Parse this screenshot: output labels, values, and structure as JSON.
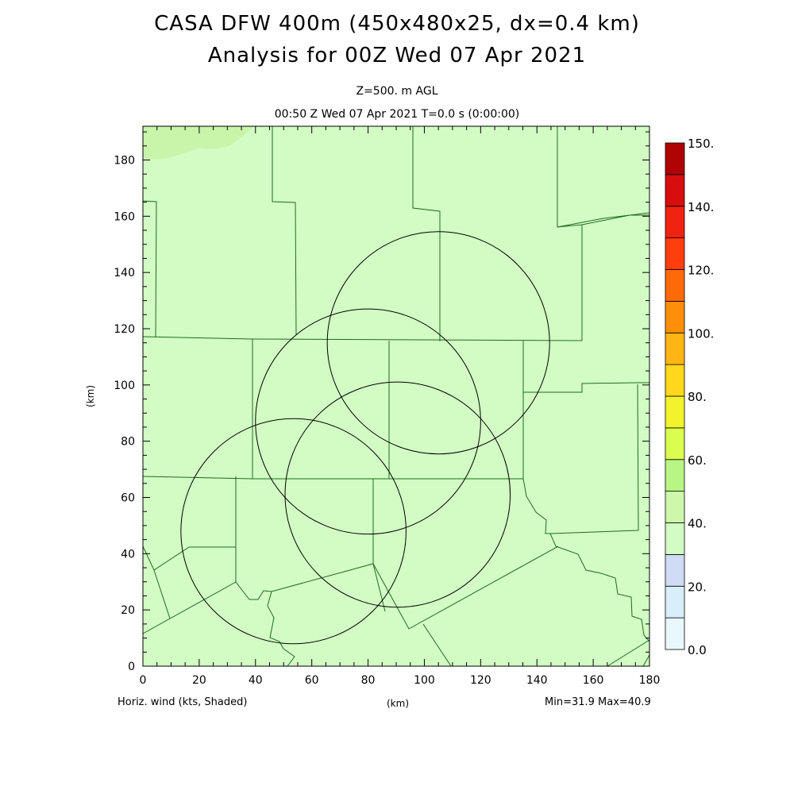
{
  "header": {
    "title_line1": "CASA DFW 400m (450x480x25, dx=0.4 km)",
    "title_line2": "Analysis for 00Z Wed 07 Apr 2021",
    "level": "Z=500. m AGL",
    "valid_time": "00:50 Z Wed 07 Apr 2021   T=0.0 s (0:00:00)"
  },
  "footer": {
    "field_label": "Horiz. wind (kts, Shaded)",
    "x_unit": "(km)",
    "minmax": "Min=31.9 Max=40.9"
  },
  "axes": {
    "xlabel": "(km)",
    "ylabel": "(km)",
    "xlim": [
      0,
      180
    ],
    "ylim": [
      0,
      192
    ],
    "x_ticks": [
      "0",
      "20",
      "40",
      "60",
      "80",
      "100",
      "120",
      "140",
      "160",
      "180"
    ],
    "y_ticks": [
      "0",
      "20",
      "40",
      "60",
      "80",
      "100",
      "120",
      "140",
      "160",
      "180"
    ]
  },
  "colorbar": {
    "labels": [
      "0.0",
      "20.",
      "40.",
      "60.",
      "80.",
      "100.",
      "120.",
      "140.",
      "150."
    ],
    "colors": [
      "#e8f8fc",
      "#d8eefa",
      "#d0dcf6",
      "#d2fcc4",
      "#cdf7ab",
      "#b8f585",
      "#dbfd4f",
      "#f2f32c",
      "#ffd71c",
      "#ffb614",
      "#ff8f09",
      "#ff6a09",
      "#ff3d0d",
      "#f02311",
      "#d80e0e",
      "#b00404"
    ]
  },
  "colors": {
    "field_fill": "#d2fcc4",
    "field_patch": "#c8f5a9",
    "county_line": "#1f6b1f",
    "radar_ring": "#000000"
  },
  "radar_rings_km": [
    {
      "cx": 105,
      "cy": 115,
      "r": 39.5
    },
    {
      "cx": 80,
      "cy": 87,
      "r": 40
    },
    {
      "cx": 90.5,
      "cy": 61,
      "r": 40
    },
    {
      "cx": 53.5,
      "cy": 48,
      "r": 40
    }
  ]
}
